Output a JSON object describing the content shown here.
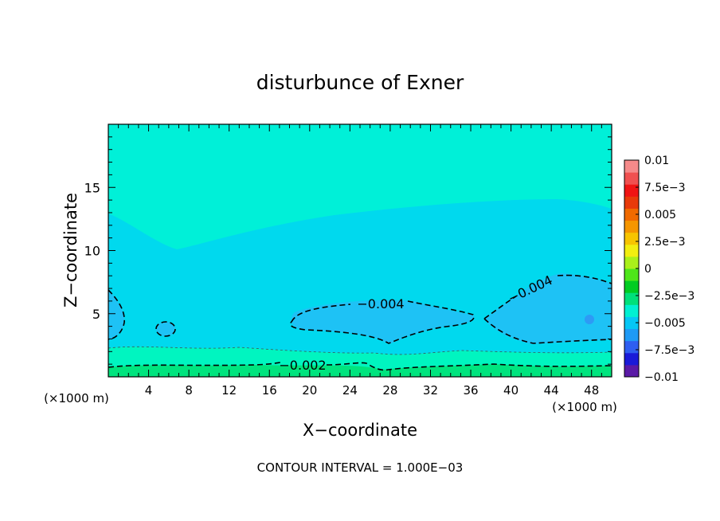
{
  "chart_data": {
    "type": "contour",
    "title": "disturbunce of Exner",
    "xlabel": "X−coordinate",
    "ylabel": "Z−coordinate",
    "x_unit_left": "(×1000 m)",
    "x_unit_right": "(×1000 m)",
    "x_ticks": [
      4,
      8,
      12,
      16,
      20,
      24,
      28,
      32,
      36,
      40,
      44,
      48
    ],
    "y_ticks": [
      5,
      10,
      15
    ],
    "xlim": [
      0,
      50
    ],
    "ylim": [
      0,
      20
    ],
    "footer": "CONTOUR INTERVAL = 1.000E−03",
    "contour_labels": [
      "−0.004",
      "−0.004",
      "−0.002"
    ],
    "colorbar": {
      "range": [
        -0.01,
        0.01
      ],
      "tick_labels": [
        "0.01",
        "7.5e−3",
        "0.005",
        "2.5e−3",
        "0",
        "−2.5e−3",
        "−0.005",
        "−7.5e−3",
        "−0.01"
      ],
      "colors": [
        "#5a1aa6",
        "#1a1ad8",
        "#2e5ef0",
        "#1e9af5",
        "#06c6f5",
        "#00f0d2",
        "#00e07a",
        "#00cc22",
        "#4ee61a",
        "#aaf01a",
        "#f2ee10",
        "#f7c400",
        "#f59600",
        "#f06a00",
        "#e83a0a",
        "#f01414",
        "#f05050",
        "#f58a8a"
      ]
    }
  }
}
